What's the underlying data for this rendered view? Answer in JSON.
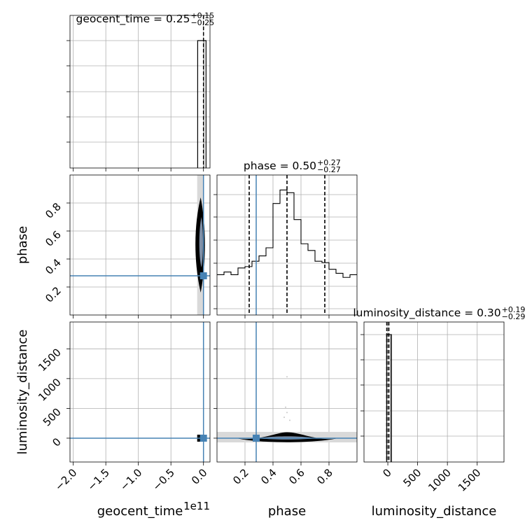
{
  "chart_data": {
    "type": "corner",
    "parameters": [
      "geocent_time",
      "phase",
      "luminosity_distance"
    ],
    "offset_label": "1e11",
    "truth": {
      "geocent_time": 0.0,
      "phase": 0.28,
      "luminosity_distance": 0.0
    },
    "colors": {
      "truth": "#4682b4",
      "hist": "#000000",
      "grid": "#b0b0b0",
      "contour": "#000000"
    },
    "grid": true,
    "titles": [
      {
        "param": "geocent_time",
        "label": "geocent_time",
        "median": "0.25",
        "plus": "+0.15",
        "minus": "−0.25"
      },
      {
        "param": "phase",
        "label": "phase",
        "median": "0.50",
        "plus": "+0.27",
        "minus": "−0.27"
      },
      {
        "param": "luminosity_distance",
        "label": "luminosity_distance",
        "median": "0.30",
        "plus": "+0.19",
        "minus": "−0.29"
      }
    ],
    "axes": {
      "geocent_time": {
        "range": [
          -2.05,
          0.1
        ],
        "ticks": [
          "−2.0",
          "−1.5",
          "−1.0",
          "−0.5",
          "0.0"
        ],
        "tick_values": [
          -2.0,
          -1.5,
          -1.0,
          -0.5,
          0.0
        ],
        "label": "geocent_time"
      },
      "phase": {
        "range": [
          0.0,
          1.0
        ],
        "ticks": [
          "0.2",
          "0.4",
          "0.6",
          "0.8"
        ],
        "tick_values": [
          0.2,
          0.4,
          0.6,
          0.8
        ],
        "label": "phase"
      },
      "luminosity_distance": {
        "range": [
          -400,
          1950
        ],
        "ticks": [
          "0",
          "500",
          "1000",
          "1500"
        ],
        "tick_values": [
          0,
          500,
          1000,
          1500
        ],
        "label": "luminosity_distance"
      }
    },
    "hist_geocent_time": {
      "bins": [
        -0.1,
        -0.05,
        0.0,
        0.05
      ],
      "counts": [
        0.0,
        1.0,
        1.0,
        0.0
      ]
    },
    "hist_phase": {
      "edges": [
        0.0,
        0.05,
        0.1,
        0.15,
        0.2,
        0.25,
        0.3,
        0.35,
        0.4,
        0.45,
        0.5,
        0.55,
        0.6,
        0.65,
        0.7,
        0.75,
        0.8,
        0.85,
        0.9,
        0.95,
        1.0
      ],
      "counts": [
        0.3,
        0.32,
        0.3,
        0.35,
        0.36,
        0.4,
        0.44,
        0.5,
        0.83,
        0.93,
        0.91,
        0.71,
        0.53,
        0.48,
        0.4,
        0.39,
        0.34,
        0.31,
        0.28,
        0.3
      ],
      "ymax": 1.0,
      "quantiles": [
        0.23,
        0.5,
        0.77
      ]
    },
    "hist_luminosity_distance": {
      "bins": [
        -20,
        0,
        60
      ],
      "counts": [
        1.0,
        1.0
      ]
    },
    "quantiles_luminosity_distance": [
      -20,
      0,
      20
    ]
  }
}
